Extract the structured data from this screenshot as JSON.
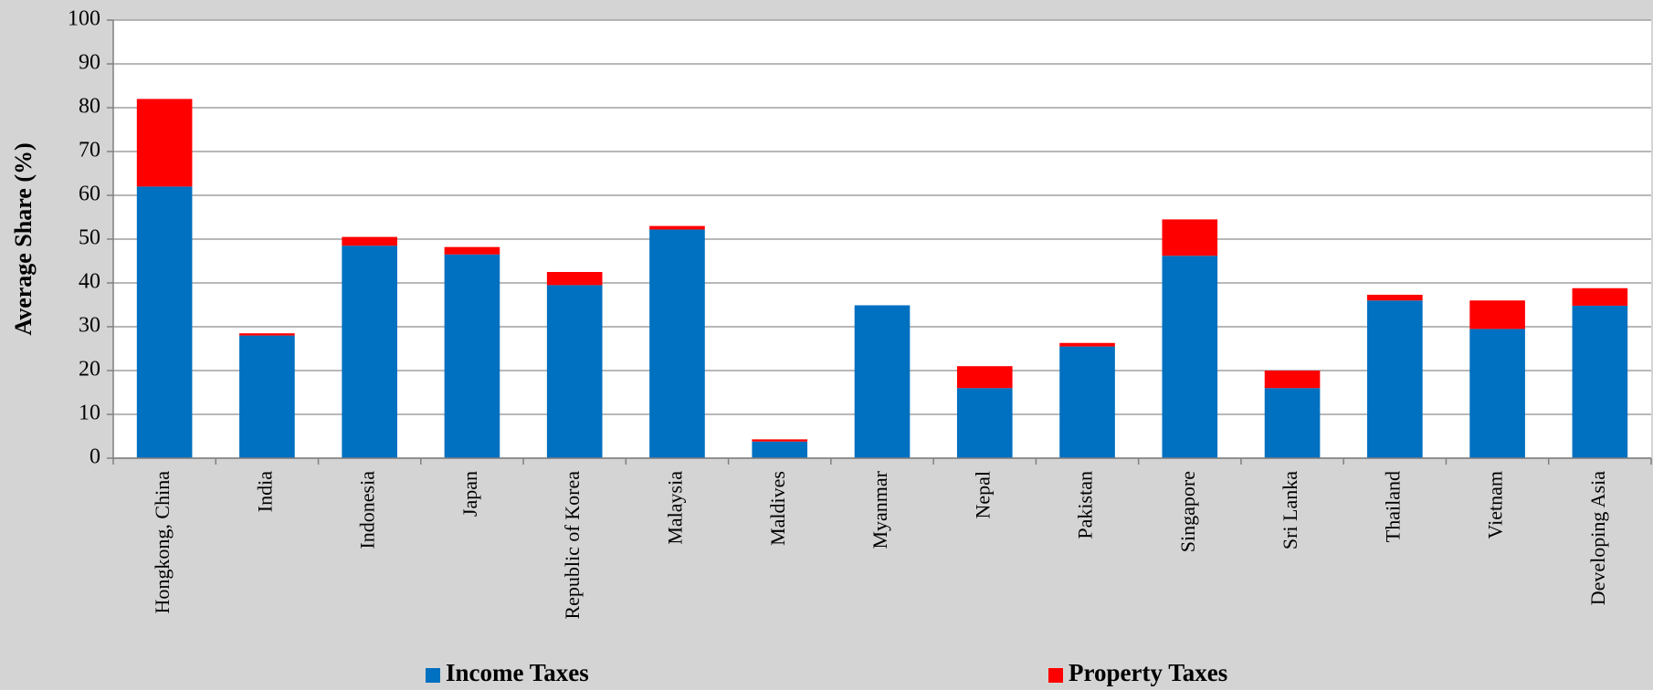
{
  "chart_data": {
    "type": "stacked_bar",
    "y_label": "Average Share (%)",
    "categories": [
      "Hongkong, China",
      "India",
      "Indonesia",
      "Japan",
      "Republic of Korea",
      "Malaysia",
      "Maldives",
      "Myanmar",
      "Nepal",
      "Pakistan",
      "Singapore",
      "Sri Lanka",
      "Thailand",
      "Vietnam",
      "Developing Asia"
    ],
    "series": [
      {
        "name": "Income Taxes",
        "color": "#0070c0",
        "values": [
          62,
          28,
          48.5,
          46.5,
          39.5,
          52.2,
          3.8,
          34.9,
          16,
          25.5,
          46.2,
          16,
          36,
          29.5,
          34.8
        ]
      },
      {
        "name": "Property Taxes",
        "color": "#ff0000",
        "values": [
          20,
          0.5,
          2,
          1.7,
          3,
          0.8,
          0.5,
          0,
          5,
          0.8,
          8.3,
          4,
          1.3,
          6.5,
          4
        ]
      }
    ],
    "ylim": [
      0,
      100
    ],
    "yticks": [
      0,
      10,
      20,
      30,
      40,
      50,
      60,
      70,
      80,
      90,
      100
    ],
    "grid": true,
    "legend": "bottom"
  }
}
